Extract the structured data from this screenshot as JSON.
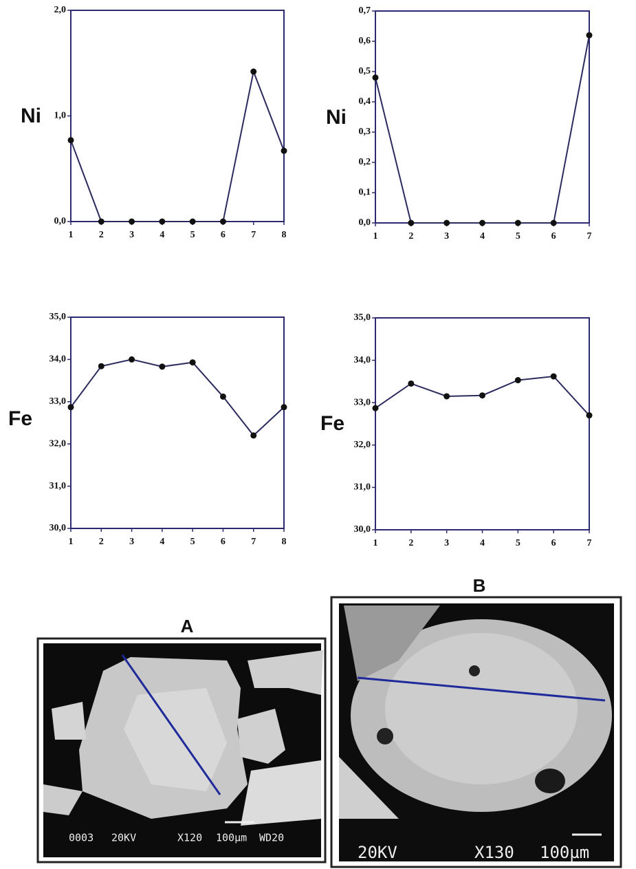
{
  "chart_data": [
    {
      "type": "line",
      "ylabel": "Ni",
      "x": [
        1,
        2,
        3,
        4,
        5,
        6,
        7,
        8
      ],
      "values": [
        0.77,
        0,
        0,
        0,
        0,
        0,
        1.42,
        0.67
      ],
      "color": "#2a2a5e",
      "xlim": [
        1,
        8
      ],
      "xticks": [
        1,
        2,
        3,
        4,
        5,
        6,
        7,
        8
      ],
      "ylim": [
        0,
        2
      ],
      "yticks": [
        {
          "value": 0,
          "label": "0,0"
        },
        {
          "value": 1,
          "label": "1,0"
        },
        {
          "value": 2,
          "label": "2,0"
        }
      ]
    },
    {
      "type": "line",
      "ylabel": "Ni",
      "x": [
        1,
        2,
        3,
        4,
        5,
        6,
        7
      ],
      "values": [
        0.48,
        0,
        0,
        0,
        0,
        0,
        0.62
      ],
      "color": "#2a2a5e",
      "xlim": [
        1,
        7
      ],
      "xticks": [
        1,
        2,
        3,
        4,
        5,
        6,
        7
      ],
      "ylim": [
        0,
        0.7
      ],
      "yticks": [
        {
          "value": 0,
          "label": "0,0"
        },
        {
          "value": 0.1,
          "label": "0,1"
        },
        {
          "value": 0.2,
          "label": "0,2"
        },
        {
          "value": 0.3,
          "label": "0,3"
        },
        {
          "value": 0.4,
          "label": "0,4"
        },
        {
          "value": 0.5,
          "label": "0,5"
        },
        {
          "value": 0.6,
          "label": "0,6"
        },
        {
          "value": 0.7,
          "label": "0,7"
        }
      ]
    },
    {
      "type": "line",
      "ylabel": "Fe",
      "x": [
        1,
        2,
        3,
        4,
        5,
        6,
        7,
        8
      ],
      "values": [
        32.87,
        33.84,
        34.0,
        33.83,
        33.93,
        33.12,
        32.2,
        32.87
      ],
      "color": "#2a2a5e",
      "xlim": [
        1,
        8
      ],
      "xticks": [
        1,
        2,
        3,
        4,
        5,
        6,
        7,
        8
      ],
      "ylim": [
        30,
        35
      ],
      "yticks": [
        {
          "value": 30,
          "label": "30,0"
        },
        {
          "value": 31,
          "label": "31,0"
        },
        {
          "value": 32,
          "label": "32,0"
        },
        {
          "value": 33,
          "label": "33,0"
        },
        {
          "value": 34,
          "label": "34,0"
        },
        {
          "value": 35,
          "label": "35,0"
        }
      ]
    },
    {
      "type": "line",
      "ylabel": "Fe",
      "x": [
        1,
        2,
        3,
        4,
        5,
        6,
        7
      ],
      "values": [
        32.87,
        33.45,
        33.15,
        33.17,
        33.53,
        33.62,
        32.7
      ],
      "color": "#2a2a5e",
      "xlim": [
        1,
        7
      ],
      "xticks": [
        1,
        2,
        3,
        4,
        5,
        6,
        7
      ],
      "ylim": [
        30,
        35
      ],
      "yticks": [
        {
          "value": 30,
          "label": "30,0"
        },
        {
          "value": 31,
          "label": "31,0"
        },
        {
          "value": 32,
          "label": "32,0"
        },
        {
          "value": 33,
          "label": "33,0"
        },
        {
          "value": 34,
          "label": "34,0"
        },
        {
          "value": 35,
          "label": "35,0"
        }
      ]
    }
  ],
  "figures": [
    {
      "label": "A",
      "caption": [
        "0003",
        "20KV",
        "X120",
        "100µm",
        "WD20"
      ]
    },
    {
      "label": "B",
      "caption": [
        "20KV",
        "X130",
        "100µm"
      ]
    }
  ]
}
